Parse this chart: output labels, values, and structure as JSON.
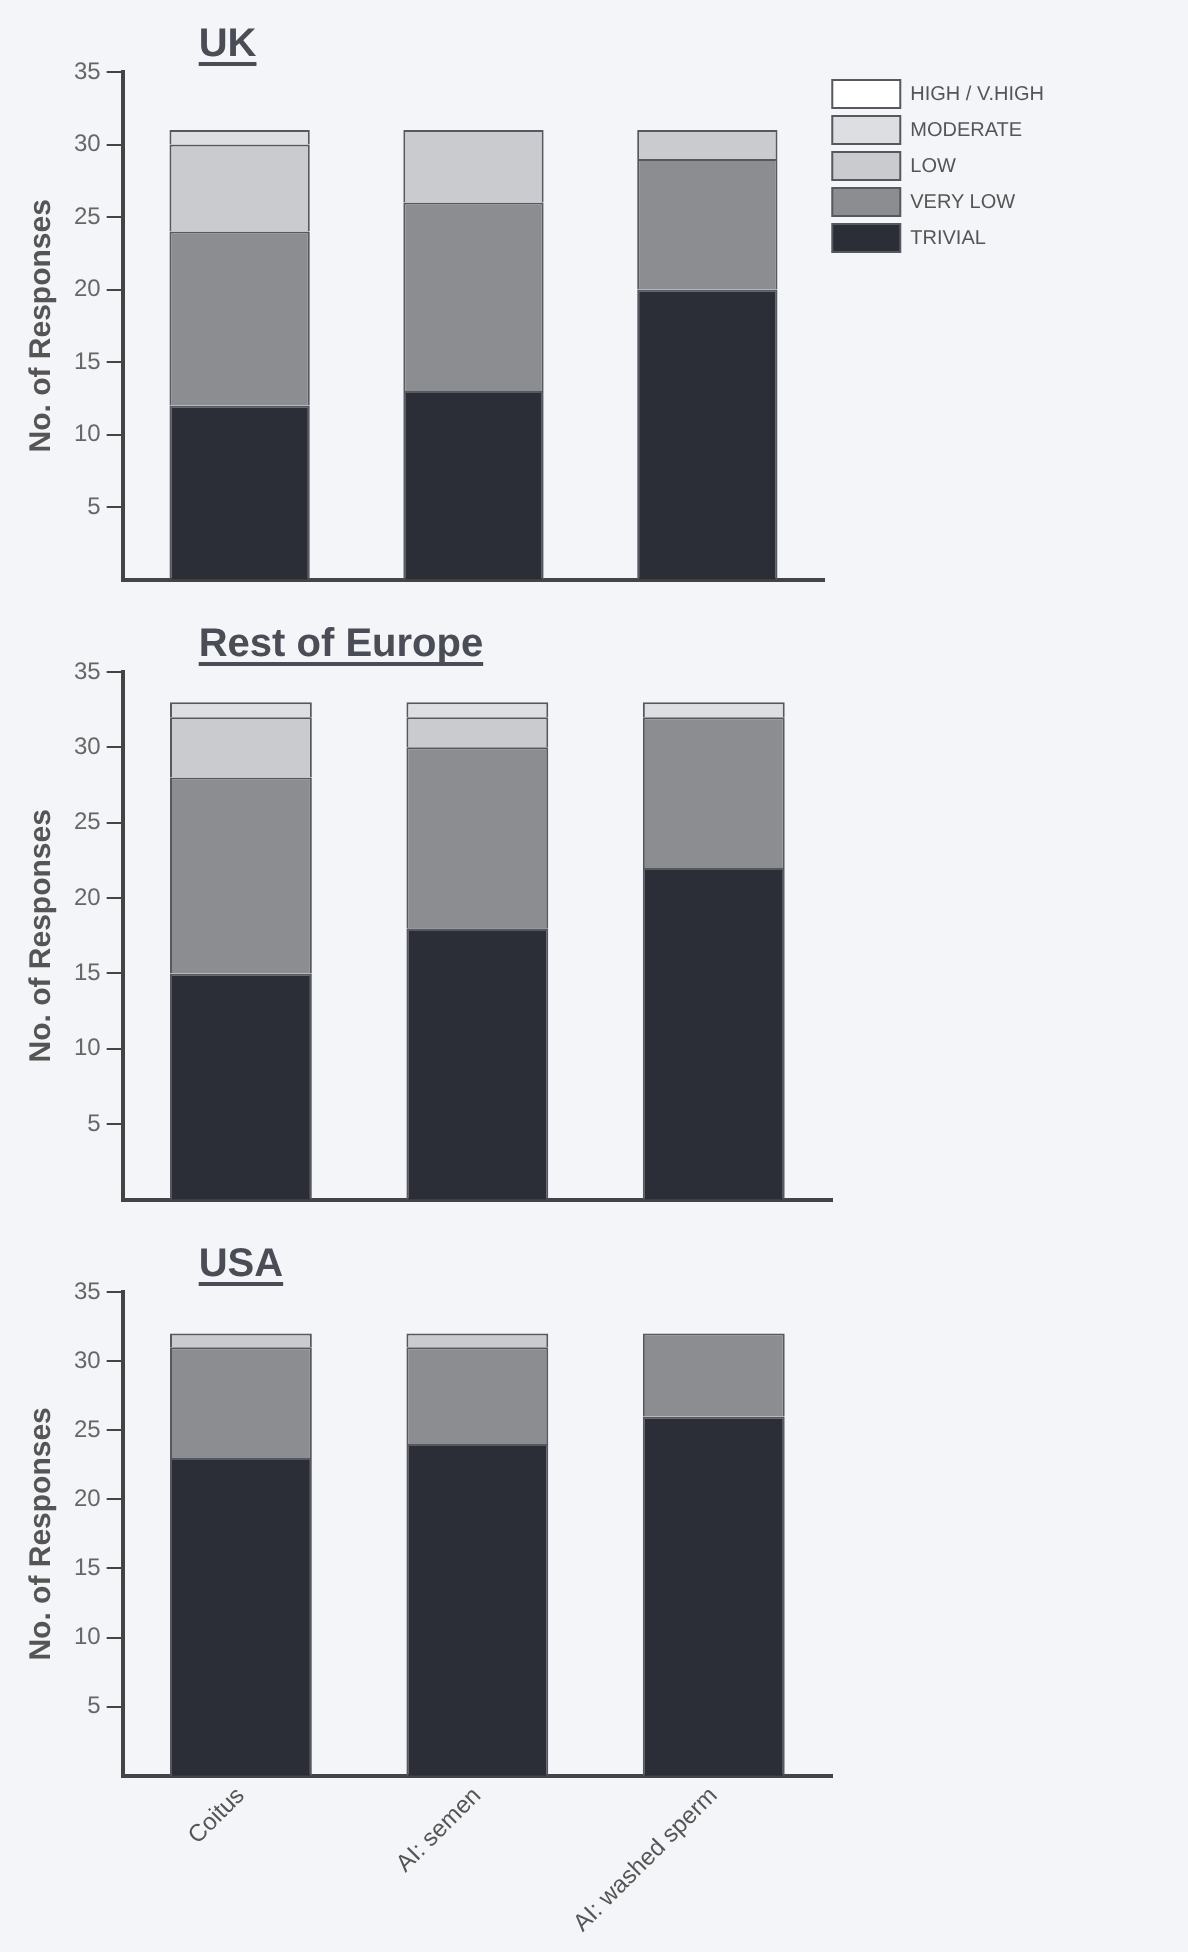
{
  "chart_data": [
    {
      "type": "bar",
      "title": "UK",
      "ylabel": "No. of Responses",
      "categories": [
        null,
        null,
        null
      ],
      "stacked": true,
      "ylim": [
        0,
        35
      ],
      "yticks": [
        5,
        10,
        15,
        20,
        25,
        30,
        35
      ],
      "grid": false,
      "legend": "right",
      "tick_labels": "y",
      "series": [
        {
          "name": "TRIVIAL",
          "color": "#2b2e36",
          "values": [
            12,
            13,
            20
          ]
        },
        {
          "name": "VERY LOW",
          "color": "#8b8d91",
          "values": [
            12,
            13,
            9
          ]
        },
        {
          "name": "LOW",
          "color": "#c9cbce",
          "values": [
            6,
            5,
            2
          ]
        },
        {
          "name": "MODERATE",
          "color": "#dddee1",
          "values": [
            1,
            0,
            0
          ]
        },
        {
          "name": "HIGH / V.HIGH",
          "color": "#ffffff",
          "values": [
            0,
            0,
            0
          ]
        }
      ]
    },
    {
      "type": "bar",
      "title": "Rest of Europe",
      "ylabel": "No. of Responses",
      "categories": [
        null,
        null,
        null
      ],
      "stacked": true,
      "ylim": [
        0,
        35
      ],
      "yticks": [
        5,
        10,
        15,
        20,
        25,
        30,
        35
      ],
      "grid": false,
      "legend": false,
      "tick_labels": "y",
      "series": [
        {
          "color": "#2b2e36",
          "values": [
            15,
            18,
            22
          ]
        },
        {
          "color": "#8b8d91",
          "values": [
            13,
            12,
            10
          ]
        },
        {
          "color": "#c9cbce",
          "values": [
            4,
            2,
            0
          ]
        },
        {
          "color": "#dddee1",
          "values": [
            1,
            1,
            1
          ]
        },
        {
          "color": "#ffffff",
          "values": [
            0,
            0,
            0
          ]
        }
      ]
    },
    {
      "type": "bar",
      "title": "USA",
      "ylabel": "No. of Responses",
      "categories": [
        "Coitus",
        "AI: semen",
        "AI: washed sperm"
      ],
      "stacked": true,
      "ylim": [
        0,
        35
      ],
      "yticks": [
        5,
        10,
        15,
        20,
        25,
        30,
        35
      ],
      "grid": false,
      "legend": false,
      "series": [
        {
          "color": "#2b2e36",
          "values": [
            23,
            24,
            26
          ]
        },
        {
          "color": "#8b8d91",
          "values": [
            8,
            7,
            6
          ]
        },
        {
          "color": "#c9cbce",
          "values": [
            1,
            1,
            0
          ]
        },
        {
          "color": "#dddee1",
          "values": [
            0,
            0,
            0
          ]
        },
        {
          "color": "#ffffff",
          "values": [
            0,
            0,
            0
          ]
        }
      ]
    }
  ]
}
